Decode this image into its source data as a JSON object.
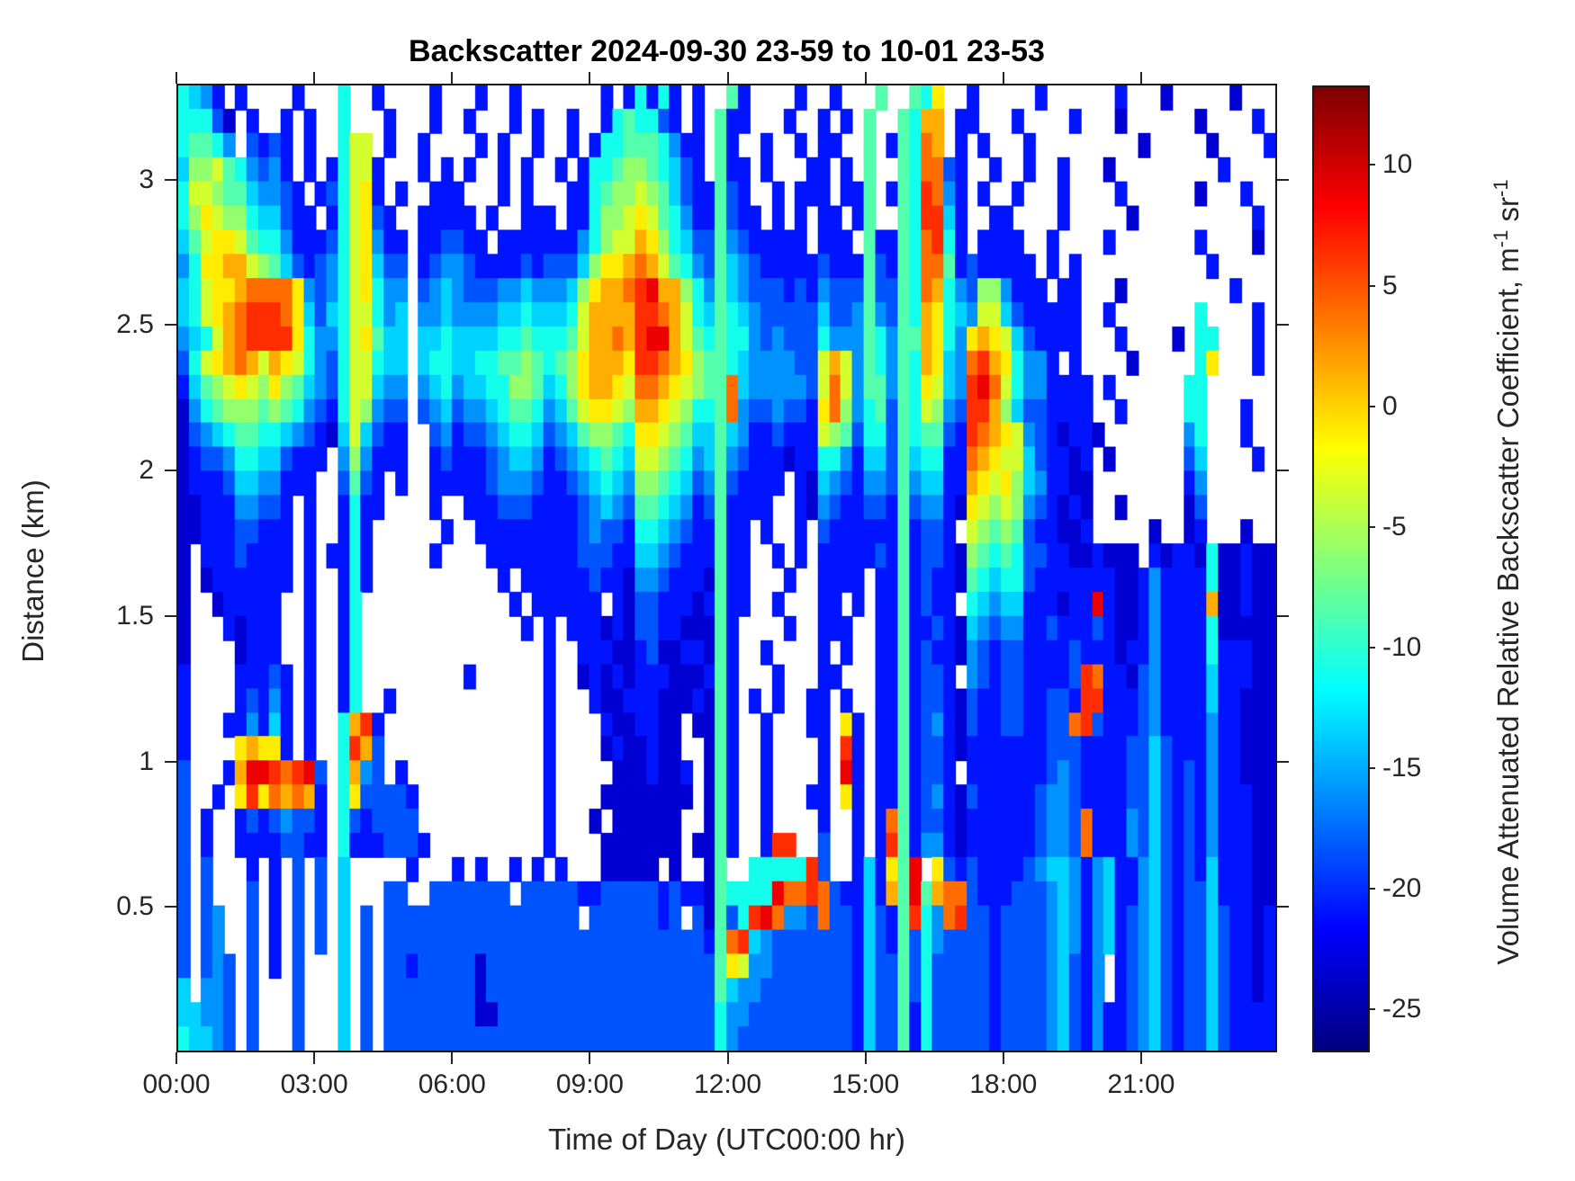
{
  "title": "Backscatter 2024-09-30 23-59 to 10-01 23-53",
  "x_axis": {
    "label": "Time of Day (UTC00:00 hr)"
  },
  "y_axis": {
    "label": "Distance (km)"
  },
  "colorbar": {
    "label_main": "Volume Attenuated Relative Backscatter Coefficient, m",
    "label_sup1": "-1",
    "label_mid": " sr",
    "label_sup2": "-1",
    "tick_values": [
      10,
      5,
      0,
      -5,
      -10,
      -15,
      -20,
      -25
    ],
    "clim": [
      -26.8,
      13.3
    ],
    "colormap": "jet"
  },
  "colors": {
    "axis": "#262626",
    "title": "#000000",
    "background": "#ffffff"
  },
  "chart_data": {
    "type": "heatmap",
    "title": "Backscatter 2024-09-30 23-59 to 10-01 23-53",
    "xlabel": "Time of Day (UTC00:00 hr)",
    "ylabel": "Distance (km)",
    "x_range_hours": [
      0,
      23.96
    ],
    "y_range_km": [
      0.0,
      3.33
    ],
    "x_ticks": [
      {
        "hour": 0,
        "label": "00:00"
      },
      {
        "hour": 3,
        "label": "03:00"
      },
      {
        "hour": 6,
        "label": "06:00"
      },
      {
        "hour": 9,
        "label": "09:00"
      },
      {
        "hour": 12,
        "label": "12:00"
      },
      {
        "hour": 15,
        "label": "15:00"
      },
      {
        "hour": 18,
        "label": "18:00"
      },
      {
        "hour": 21,
        "label": "21:00"
      }
    ],
    "y_ticks": [
      {
        "km": 0.5,
        "label": "0.5"
      },
      {
        "km": 1,
        "label": "1"
      },
      {
        "km": 1.5,
        "label": "1.5"
      },
      {
        "km": 2,
        "label": "2"
      },
      {
        "km": 2.5,
        "label": "2.5"
      },
      {
        "km": 3,
        "label": "3"
      }
    ],
    "grid": {
      "comment": "Coarse 96x24h x 40-row digitization of the backscatter field. Row 0 = top (3.33 km), row 39 = surface. Each column = 15 min. '.' = no data (white). Char level L in '0123456789abcdef' maps to value = -26 + L*2.5 (m^-1 sr^-1, relative units).",
      "cols": 96,
      "rows": 40,
      "t_start_hour": 0,
      "t_step_minutes": 15,
      "km_top": 3.33,
      "km_bottom": 0.0,
      "encoding": {
        "nan": ".",
        "levels": "0123456789abcdef",
        "value_min": -26,
        "value_step": 2.5
      },
      "rows_data": [
        "6542.2....2...6..2....2...2..2.......2.26262.2..72....2..2...7..76a..2.....2......2...1.....1...2",
        "66631.2..2.2..6...2...2..2...2.2..2..2676632.2.722...2..2.2.7..76bb.22...2....2...1......1....2.",
        "67764.3232.2..699.2..2....2.2..2..2.2667776422.72..2..2.22..7.276cb.2.2...2.........1.....1....2",
        "5889764342.2.26992...2.2.2..2.2..2.26678876532.722.2...22.2.7..76cc32..2..2..2...1.........2....",
        "69987754432.2369a2.2..222...2.2...2267889875322732..2.222.227.276dc42.2..2...2....2......1...2..",
        "68a988655322.269a32..22222.2..222.226889a9764227322.2.2.22.27..76dd52..22....2.....1..........2.",
        "579aa97664222369a422.223322.2222222468 99ba8653374322222.222.72276cd62.2222..2....2.......2....1",
        "46aabb9875323469a533.23443222232333 58aabcb97643754322222322273276cc72322222.2.2...........2.....",
        "569aabcccca43469a644.345433344544458abbcdebb864754333232433373376cb643884222.22...1.........2...",
        "569abcdddca535699645.4454444556 55569bbbbddcb9657654333335334743 76ba654995322222..2.......6....2.",
        "4569bcdddda64469a755.55655556676667 9bbcbdeeb976766434333644476477ba64aba9532222...2....1.66...2.",
        "369abcb9ba9643699655.56655667787678abbbaddcba87765444433 9b9476476ba54cdba6442.2....1.....6a...2.",
        "25789a98a87543699544.45645566887568abba9ccba9877c54444439c9477476a954dec96442222.2......66......",
        "1467888787643269 8433.345344567764579aa98bba98667c4334332ac84673769843ddb85332222..2.....66...2..",
        "1345677665432159 5322..34233456653457887 6aa98755754223222987366376 7732dcba94321221.......46...2..",
        "1233466553222.484222..2322234554234567659987645743222122664255375662 2cba99532212.1......35....2.",
        "122235544222..3732.2..22222344432234565488765347322 22.2154324437455 22ba9a8542211........24......",
        "1122244332.2..2622....2..222333222234543776542372222..214322332734421a9898432121..1.....13......",
        "1122233222.2..262......2..22222222234332665432272 2.2..2.322222272332.98787322112.....1..12...1..",
        "1.22232222.2.2262.....2....222222223332255432227 22..2.2.222223272332187676332211 2111.21221611211",
        "1.12222222.2..262...........2.22222232214432221722...2..2222.22723221765663222222211242222611211",
        "1..122222..2..26.............2.222222.213322212722..2...22.2.2272322.65455222122e211242222b11211",
        "1...21222..2..26..............2.2.22212133221117 2....2..222..22722321543442232223211242222611111",
        "1....1222..2..26................2..222112 31122172..2....2.2..22723221432332222322212242222622211",
        "2....22232.2..26.........2......2..1212122211127 2...2...22...2272332.4323322223dc221342222522211",
        "2....23242.2..26..2.............2...211222111217 2.2.2..22.2..22723321322332233 2dd222342222522111",
        "2...224252.2..6bd2..............2....2112211.1172..2...22.a2.22723421322332233cd3222342222422111",
        "2....abaa2.2..6db3..............2....1211211..172..2....2.d2.22723321222222233322223353222422111",
        "3...2beedcde3.6b43.2............2.....1112112.172..2....2.e2.2272332.22222223432222335 3232422111",
        "3..2.adacbcb2.6a33332...........2....11111111.172..2...22.a2.2272342132222234432222335 3232422211",
        "3.2..23234332.6323333...........2...1.111111..172..2....2..2.2c7233212222223443c222435 3232422211",
        "3.2..22223322.62223332..........2....1111111.1172..2dd..3..2.2d7244212222223443c222435 3232422211",
        "3.3...2.2.3.3.5.....2...2.2..2.2.2...11111.1..17..66666d3..252a7e.a3232222345542452245 3232522211",
        "3.3...3.2.3.3.5...33..3333333.3333322333332322176666eccdc32252b7e7bcc32223334542452245 3233522211",
        "3.34..3.2.3.3.5.3.33333333333333333.33333323.31736dec443c3325327d64cd3323333454245234532 33532212",
        "3.34..3.2.3.3.5.3.3333333333333333333333333 33327cd54333333325327364333323333454245234532 33532212",
        "3.343.3.2.3...5.3.33233333133333333333333333333 7a944333333325337363333323333453 24.23453233532212",
        "5.443.3...3...5.3.33333333133333333333333333333 75443333333325337363333323333453 24.23453233532212",
        "55443.3...3...5.3.33333333113333 3333333333333336443333333332533726333332333345324223453233532222",
        "65543.3...3...5.3.3333333333333333333333333333364333333333325337263333323333453242234532 33532222"
      ]
    }
  }
}
